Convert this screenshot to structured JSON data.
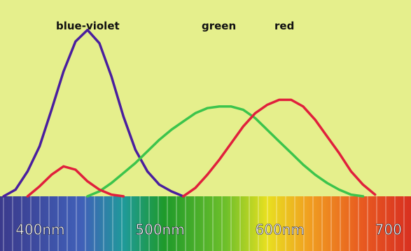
{
  "chart_data": {
    "type": "line",
    "x": [
      390,
      400,
      410,
      420,
      430,
      440,
      450,
      460,
      470,
      480,
      490,
      500,
      510,
      520,
      530,
      540,
      550,
      560,
      570,
      580,
      590,
      600,
      610,
      620,
      630,
      640,
      650,
      660,
      670,
      680,
      690,
      700,
      710
    ],
    "series": [
      {
        "name": "blue-violet",
        "color": "#4a1f9e",
        "values": [
          0,
          4,
          15,
          30,
          52,
          75,
          93,
          100,
          92,
          72,
          48,
          28,
          15,
          7,
          3,
          0,
          null,
          null,
          null,
          null,
          null,
          null,
          null,
          null,
          null,
          null,
          null,
          null,
          null,
          null,
          null,
          null,
          null
        ]
      },
      {
        "name": "green",
        "color": "#3cc44c",
        "values": [
          null,
          null,
          null,
          null,
          null,
          null,
          null,
          0,
          3,
          8,
          14,
          20,
          27,
          34,
          40,
          45,
          50,
          53,
          54,
          54,
          52,
          47,
          40,
          33,
          26,
          19,
          13,
          8,
          4,
          1,
          0,
          null,
          null
        ]
      },
      {
        "name": "red",
        "color": "#e0203c",
        "values": [
          null,
          null,
          0,
          6,
          13,
          18,
          16,
          9,
          4,
          1,
          0,
          null,
          null,
          null,
          null,
          0,
          5,
          13,
          22,
          32,
          42,
          50,
          55,
          58,
          58,
          54,
          46,
          36,
          26,
          15,
          7,
          1,
          null
        ]
      }
    ],
    "xlim": [
      387,
      730
    ],
    "xticks": [
      {
        "value": 400,
        "label": "400nm"
      },
      {
        "value": 500,
        "label": "500nm"
      },
      {
        "value": 600,
        "label": "600nm"
      },
      700
    ],
    "ylim": [
      0,
      118
    ]
  }
}
